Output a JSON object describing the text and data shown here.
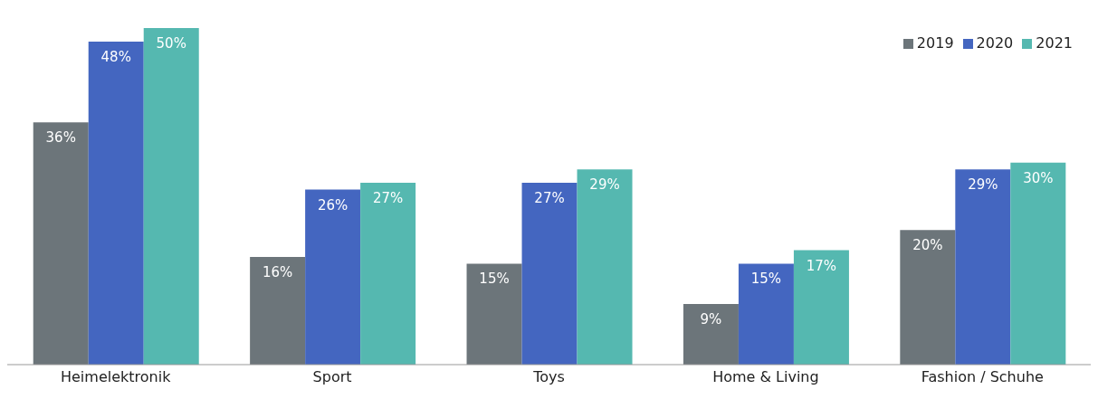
{
  "chart_data": {
    "type": "bar",
    "categories": [
      "Heimelektronik",
      "Sport",
      "Toys",
      "Home & Living",
      "Fashion / Schuhe"
    ],
    "series": [
      {
        "name": "2019",
        "color": "#6c757a",
        "values": [
          36,
          16,
          15,
          9,
          20
        ],
        "value_labels": [
          "36%",
          "16%",
          "15%",
          "9%",
          "20%"
        ]
      },
      {
        "name": "2020",
        "color": "#4466c0",
        "values": [
          48,
          26,
          27,
          15,
          29
        ],
        "value_labels": [
          "48%",
          "26%",
          "27%",
          "15%",
          "29%"
        ]
      },
      {
        "name": "2021",
        "color": "#55b8b0",
        "values": [
          50,
          27,
          29,
          17,
          30
        ],
        "value_labels": [
          "50%",
          "27%",
          "29%",
          "17%",
          "30%"
        ]
      }
    ],
    "ylim": [
      0,
      50
    ],
    "tick_labels": "x",
    "grid": false,
    "legend": "top right"
  }
}
